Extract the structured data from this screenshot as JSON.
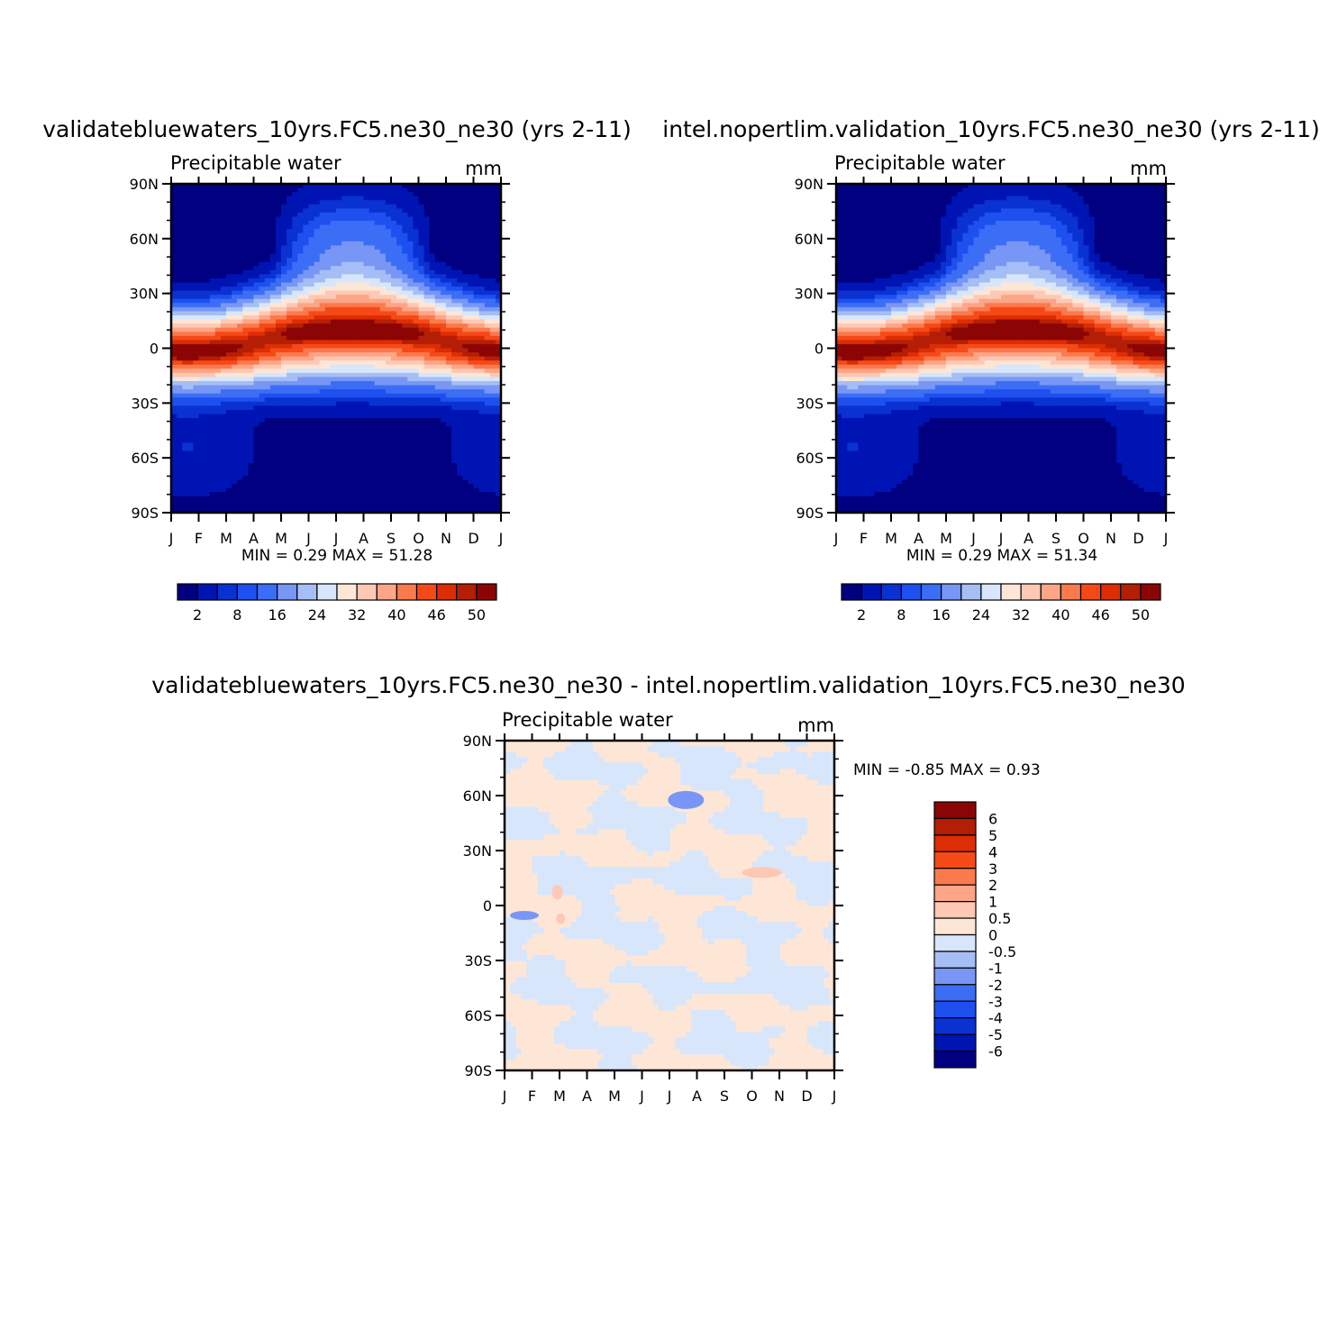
{
  "chart_data": [
    {
      "type": "heatmap",
      "title": "validatebluewaters_10yrs.FC5.ne30_ne30 (yrs 2-11)",
      "subtitle": "Precipitable water",
      "units": "mm",
      "x_ticks": [
        "J",
        "F",
        "M",
        "A",
        "M",
        "J",
        "J",
        "A",
        "S",
        "O",
        "N",
        "D",
        "J"
      ],
      "y_ticks": [
        "90N",
        "60N",
        "30N",
        "0",
        "30S",
        "60S",
        "90S"
      ],
      "stats": "MIN =    0.29  MAX =    51.28",
      "colorbar_labels": [
        "2",
        "8",
        "16",
        "24",
        "32",
        "40",
        "46",
        "50"
      ],
      "colors": [
        "#000080",
        "#0014b4",
        "#0a32d2",
        "#1e50f0",
        "#3c6ef5",
        "#7896f5",
        "#a5bef5",
        "#d7e6fa",
        "#fee6d7",
        "#fdc8b4",
        "#fca587",
        "#fb7a4d",
        "#f54a18",
        "#dc2d05",
        "#b41e05",
        "#8c0505"
      ],
      "itcz_max_north": 51.28
    },
    {
      "type": "heatmap",
      "title": "intel.nopertlim.validation_10yrs.FC5.ne30_ne30 (yrs 2-11)",
      "subtitle": "Precipitable water",
      "units": "mm",
      "x_ticks": [
        "J",
        "F",
        "M",
        "A",
        "M",
        "J",
        "J",
        "A",
        "S",
        "O",
        "N",
        "D",
        "J"
      ],
      "y_ticks": [
        "90N",
        "60N",
        "30N",
        "0",
        "30S",
        "60S",
        "90S"
      ],
      "stats": "MIN =    0.29  MAX =    51.34",
      "colorbar_labels": [
        "2",
        "8",
        "16",
        "24",
        "32",
        "40",
        "46",
        "50"
      ],
      "colors": [
        "#000080",
        "#0014b4",
        "#0a32d2",
        "#1e50f0",
        "#3c6ef5",
        "#7896f5",
        "#a5bef5",
        "#d7e6fa",
        "#fee6d7",
        "#fdc8b4",
        "#fca587",
        "#fb7a4d",
        "#f54a18",
        "#dc2d05",
        "#b41e05",
        "#8c0505"
      ],
      "itcz_max_north": 51.34
    },
    {
      "type": "heatmap",
      "title": "validatebluewaters_10yrs.FC5.ne30_ne30 - intel.nopertlim.validation_10yrs.FC5.ne30_ne30",
      "subtitle": "Precipitable water",
      "units": "mm",
      "x_ticks": [
        "J",
        "F",
        "M",
        "A",
        "M",
        "J",
        "J",
        "A",
        "S",
        "O",
        "N",
        "D",
        "J"
      ],
      "y_ticks": [
        "90N",
        "60N",
        "30N",
        "0",
        "30S",
        "60S",
        "90S"
      ],
      "stats": "MIN =   -0.85  MAX =    0.93",
      "colorbar_labels": [
        "6",
        "5",
        "4",
        "3",
        "2",
        "1",
        "0.5",
        "0",
        "-0.5",
        "-1",
        "-2",
        "-3",
        "-4",
        "-5",
        "-6"
      ],
      "colors": [
        "#8c0505",
        "#b41e05",
        "#dc2d05",
        "#f54a18",
        "#fb7a4d",
        "#fca587",
        "#fdc8b4",
        "#fee6d7",
        "#d7e6fa",
        "#a5bef5",
        "#7896f5",
        "#3c6ef5",
        "#1e50f0",
        "#0a32d2",
        "#0014b4",
        "#000080"
      ],
      "background_color": "#fee6d7",
      "negative_color": "#d7e6fa"
    }
  ]
}
